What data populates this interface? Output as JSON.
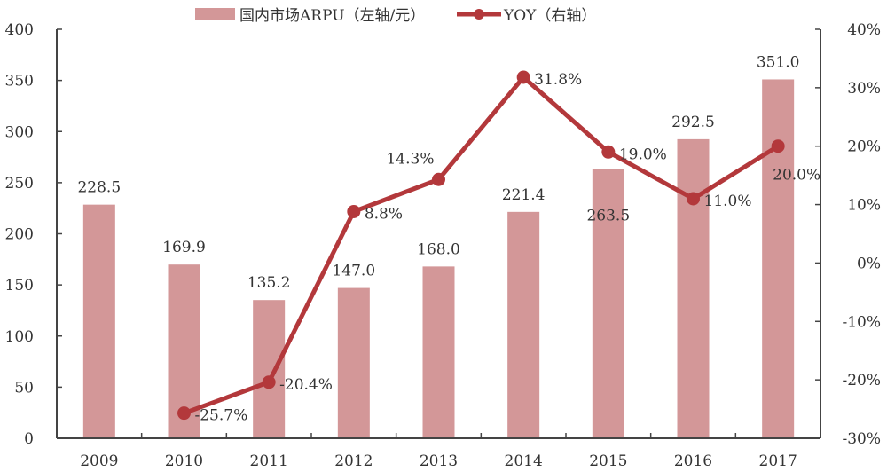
{
  "chart_data": {
    "type": "bar+line",
    "categories": [
      "2009",
      "2010",
      "2011",
      "2012",
      "2013",
      "2014",
      "2015",
      "2016",
      "2017"
    ],
    "series": [
      {
        "name": "国内市场ARPU（左轴/元）",
        "type": "bar",
        "axis": "left",
        "values": [
          228.5,
          169.9,
          135.2,
          147.0,
          168.0,
          221.4,
          263.5,
          292.5,
          351.0
        ],
        "labels": [
          "228.5",
          "169.9",
          "135.2",
          "147.0",
          "168.0",
          "221.4",
          "263.5",
          "292.5",
          "351.0"
        ]
      },
      {
        "name": "YOY（右轴）",
        "type": "line",
        "axis": "right",
        "values": [
          null,
          -25.7,
          -20.4,
          8.8,
          14.3,
          31.8,
          19.0,
          11.0,
          20.0
        ],
        "labels": [
          "",
          "-25.7%",
          "-20.4%",
          "8.8%",
          "14.3%",
          "31.8%",
          "19.0%",
          "11.0%",
          "20.0%"
        ]
      }
    ],
    "left_axis": {
      "ylim": [
        0,
        400
      ],
      "ticks": [
        "0",
        "50",
        "100",
        "150",
        "200",
        "250",
        "300",
        "350",
        "400"
      ]
    },
    "right_axis": {
      "ylim": [
        -30,
        40
      ],
      "ticks": [
        "-30%",
        "-20%",
        "-10%",
        "0%",
        "10%",
        "20%",
        "30%",
        "40%"
      ]
    },
    "legend": "top",
    "grid": false,
    "colors": {
      "bar": "#d39798",
      "line": "#b3383b",
      "axis": "#444444"
    }
  }
}
